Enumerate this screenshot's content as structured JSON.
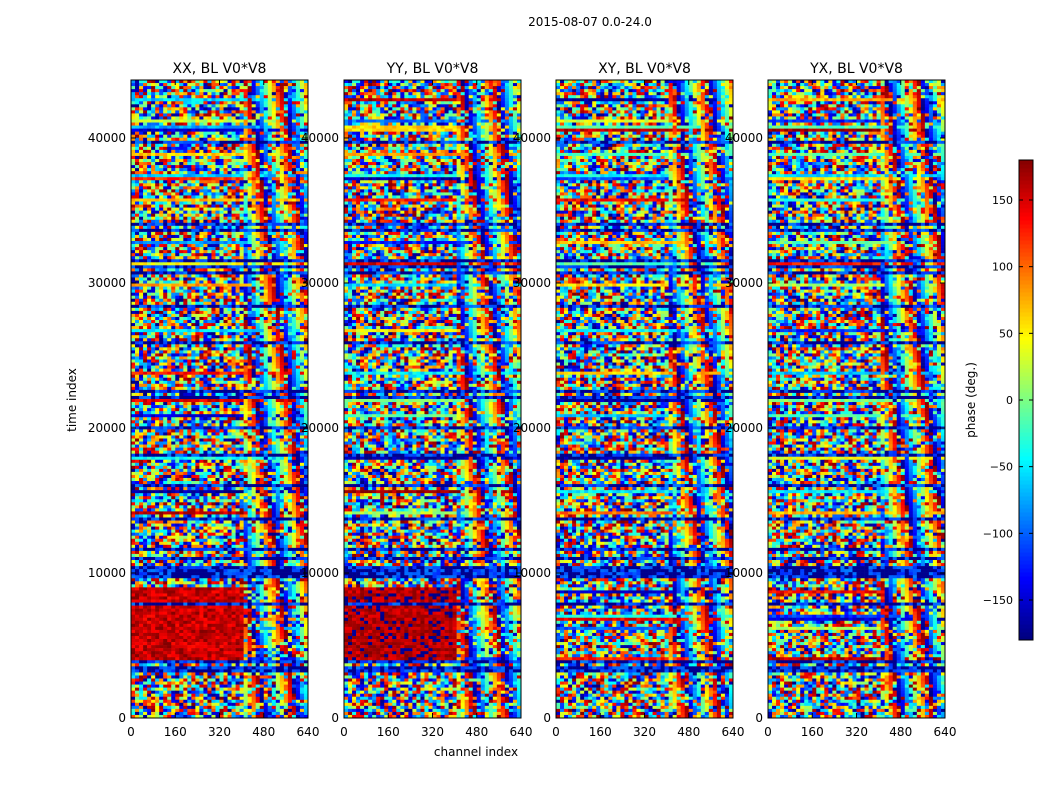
{
  "chart_data": {
    "type": "heatmap",
    "suptitle": "2015-08-07 0.0-24.0",
    "xlabel": "channel index",
    "ylabel": "time index",
    "colorbar_label": "phase (deg.)",
    "colormap": "jet",
    "colorbar_range": [
      -180,
      180
    ],
    "colorbar_ticks": [
      -150,
      -100,
      -50,
      0,
      50,
      100,
      150
    ],
    "colorbar_tick_labels": [
      "−150",
      "−100",
      "−50",
      "0",
      "50",
      "100",
      "150"
    ],
    "xlim": [
      0,
      640
    ],
    "ylim": [
      0,
      44000
    ],
    "x_ticks": [
      0,
      160,
      320,
      480,
      640
    ],
    "y_ticks": [
      0,
      10000,
      20000,
      30000,
      40000
    ],
    "panels": [
      {
        "title": "XX, BL V0*V8",
        "pol": "XX",
        "coherent_band": {
          "x": [
            0,
            400
          ],
          "y": [
            4000,
            9000
          ],
          "phase_deg": 155
        }
      },
      {
        "title": "YY, BL V0*V8",
        "pol": "YY",
        "coherent_band": {
          "x": [
            0,
            400
          ],
          "y": [
            4000,
            9000
          ],
          "phase_deg": 165
        }
      },
      {
        "title": "XY, BL V0*V8",
        "pol": "XY"
      },
      {
        "title": "YX, BL V0*V8",
        "pol": "YX"
      }
    ],
    "grid": false,
    "legend": "none"
  }
}
